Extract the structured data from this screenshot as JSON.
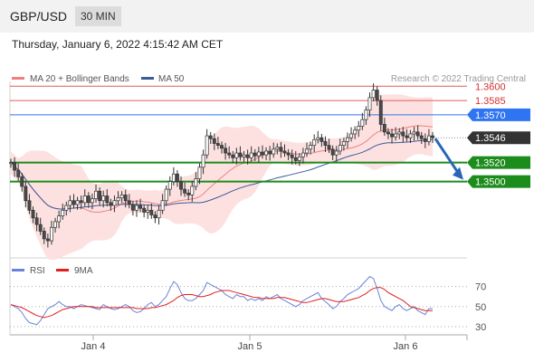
{
  "header": {
    "pair": "GBP/USD",
    "timeframe": "30 MIN"
  },
  "timestamp": "Thursday, January 6, 2022 4:15:42 AM CET",
  "colors": {
    "bollinger_fill": "#fde1e1",
    "ma20": "#f08080",
    "ma50": "#3b5b9a",
    "candle_up": "#ffffff",
    "candle_down": "#4a4a4a",
    "resistance": "#e05c5c",
    "pivot": "#2f74f0",
    "support": "#1c8c1c",
    "current": "#333333",
    "arrow": "#2966b8",
    "rsi": "#6a82d8",
    "rsi_ma": "#e02020"
  },
  "chart_data": [
    {
      "type": "candlestick",
      "legend": [
        {
          "name": "MA 20 + Bollinger Bands",
          "color": "#f08080"
        },
        {
          "name": "MA 50",
          "color": "#3b5b9a"
        }
      ],
      "credit": "Research © 2022 Trading Central",
      "ylim": [
        1.342,
        1.3605
      ],
      "x_ticks": [
        "Jan 4",
        "Jan 5",
        "Jan 6"
      ],
      "levels": [
        {
          "label": "1.3600",
          "value": 1.36,
          "kind": "resistance"
        },
        {
          "label": "1.3585",
          "value": 1.3585,
          "kind": "resistance"
        },
        {
          "label": "1.3570",
          "value": 1.357,
          "kind": "pivot"
        },
        {
          "label": "1.3546",
          "value": 1.3546,
          "kind": "current"
        },
        {
          "label": "1.3520",
          "value": 1.352,
          "kind": "support"
        },
        {
          "label": "1.3500",
          "value": 1.35,
          "kind": "support"
        }
      ],
      "close": [
        1.352,
        1.3512,
        1.3505,
        1.3495,
        1.348,
        1.347,
        1.3462,
        1.3455,
        1.3448,
        1.344,
        1.3438,
        1.3452,
        1.3458,
        1.3464,
        1.347,
        1.3475,
        1.348,
        1.3476,
        1.348,
        1.3478,
        1.3485,
        1.3478,
        1.3482,
        1.349,
        1.348,
        1.3485,
        1.3478,
        1.3475,
        1.348,
        1.3483,
        1.3486,
        1.348,
        1.3476,
        1.347,
        1.3475,
        1.3472,
        1.3468,
        1.347,
        1.3465,
        1.3462,
        1.347,
        1.348,
        1.3492,
        1.35,
        1.3508,
        1.35,
        1.3492,
        1.3488,
        1.3486,
        1.3495,
        1.3503,
        1.3515,
        1.3528,
        1.3548,
        1.3545,
        1.354,
        1.3538,
        1.3535,
        1.353,
        1.3528,
        1.3525,
        1.353,
        1.3526,
        1.3528,
        1.3525,
        1.353,
        1.3527,
        1.3531,
        1.3528,
        1.3532,
        1.3529,
        1.3534,
        1.3536,
        1.3532,
        1.353,
        1.3528,
        1.3525,
        1.3522,
        1.3526,
        1.353,
        1.3534,
        1.3538,
        1.3544,
        1.3546,
        1.3542,
        1.3538,
        1.3534,
        1.3528,
        1.3532,
        1.3538,
        1.3542,
        1.3546,
        1.355,
        1.3554,
        1.3558,
        1.3565,
        1.3575,
        1.3588,
        1.3596,
        1.3585,
        1.356,
        1.3552,
        1.355,
        1.3547,
        1.355,
        1.3552,
        1.3548,
        1.3546,
        1.355,
        1.3552,
        1.3548,
        1.3545,
        1.3542,
        1.3548,
        1.3546
      ],
      "rsi": {
        "name": "RSI",
        "ma_name": "9MA",
        "ylim": [
          20,
          85
        ],
        "ticks": [
          70,
          50,
          30
        ],
        "values": [
          52,
          50,
          48,
          44,
          38,
          34,
          33,
          32,
          36,
          42,
          48,
          50,
          52,
          55,
          52,
          50,
          50,
          48,
          50,
          52,
          51,
          50,
          49,
          48,
          47,
          52,
          50,
          48,
          47,
          48,
          50,
          52,
          50,
          46,
          44,
          45,
          48,
          52,
          54,
          50,
          52,
          56,
          60,
          68,
          75,
          72,
          64,
          58,
          56,
          56,
          58,
          62,
          66,
          74,
          72,
          70,
          68,
          66,
          62,
          60,
          58,
          62,
          60,
          60,
          56,
          58,
          56,
          58,
          56,
          60,
          58,
          60,
          62,
          58,
          56,
          54,
          52,
          50,
          52,
          56,
          58,
          60,
          62,
          64,
          58,
          55,
          52,
          48,
          50,
          55,
          58,
          62,
          64,
          66,
          68,
          72,
          76,
          80,
          78,
          68,
          56,
          50,
          48,
          46,
          50,
          52,
          48,
          46,
          48,
          50,
          46,
          44,
          42,
          48,
          48
        ],
        "ma_values": [
          52,
          51,
          50,
          49,
          47,
          45,
          43,
          41,
          40,
          39,
          40,
          41,
          43,
          45,
          47,
          48,
          49,
          50,
          50,
          50,
          50,
          50,
          50,
          49,
          49,
          49,
          49,
          49,
          49,
          49,
          49,
          49,
          49,
          49,
          48,
          48,
          48,
          48,
          49,
          49,
          50,
          51,
          52,
          54,
          56,
          59,
          61,
          62,
          62,
          62,
          61,
          60,
          60,
          61,
          62,
          64,
          65,
          66,
          66,
          66,
          65,
          64,
          63,
          62,
          61,
          60,
          59,
          59,
          58,
          58,
          58,
          58,
          59,
          59,
          59,
          58,
          57,
          56,
          55,
          54,
          54,
          55,
          56,
          57,
          58,
          58,
          57,
          56,
          55,
          55,
          55,
          56,
          57,
          58,
          59,
          61,
          63,
          66,
          68,
          69,
          69,
          67,
          64,
          62,
          60,
          58,
          56,
          53,
          50,
          49,
          48,
          47,
          46,
          46,
          46
        ]
      }
    }
  ]
}
